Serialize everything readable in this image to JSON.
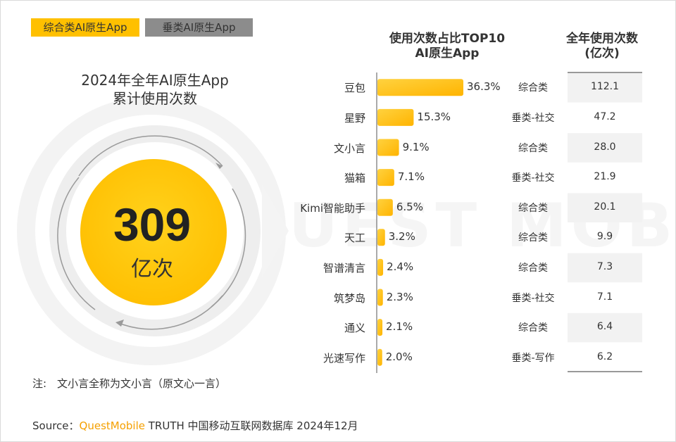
{
  "legend": {
    "comprehensive": "综合类AI原生App",
    "vertical": "垂类AI原生App"
  },
  "colors": {
    "comprehensive": "#ffc000",
    "vertical": "#8c8c8c",
    "bar_gradient_start": "#ffd23f",
    "bar_gradient_end": "#ffb400",
    "value_cell_bg": "#f2f2f2"
  },
  "left": {
    "title_line1": "2024年全年AI原生App",
    "title_line2": "累计使用次数",
    "big_number": "309",
    "big_unit": "亿次"
  },
  "headers": {
    "share_line1": "使用次数占比TOP10",
    "share_line2": "AI原生App",
    "annual_line1": "全年使用次数",
    "annual_line2": "(亿次)"
  },
  "chart_data": {
    "type": "bar",
    "orientation": "horizontal",
    "categories": [
      "豆包",
      "星野",
      "文小言",
      "猫箱",
      "Kimi智能助手",
      "天工",
      "智谱清言",
      "筑梦岛",
      "通义",
      "光速写作"
    ],
    "values": [
      36.3,
      15.3,
      9.1,
      7.1,
      6.5,
      3.2,
      2.4,
      2.3,
      2.1,
      2.0
    ],
    "value_labels": [
      "36.3%",
      "15.3%",
      "9.1%",
      "7.1%",
      "6.5%",
      "3.2%",
      "2.4%",
      "2.3%",
      "2.1%",
      "2.0%"
    ],
    "unit": "%",
    "app_types": [
      "综合类",
      "垂类-社交",
      "综合类",
      "垂类-社交",
      "综合类",
      "综合类",
      "综合类",
      "垂类-社交",
      "综合类",
      "垂类-写作"
    ],
    "annual_uses": [
      "112.1",
      "47.2",
      "28.0",
      "21.9",
      "20.1",
      "9.9",
      "7.3",
      "7.1",
      "6.4",
      "6.2"
    ]
  },
  "note": "注:　文小言全称为文小言（原文心一言）",
  "source": {
    "prefix": "Source：",
    "brand": "QuestMobile",
    "rest": " TRUTH 中国移动互联网数据库 2024年12月"
  }
}
